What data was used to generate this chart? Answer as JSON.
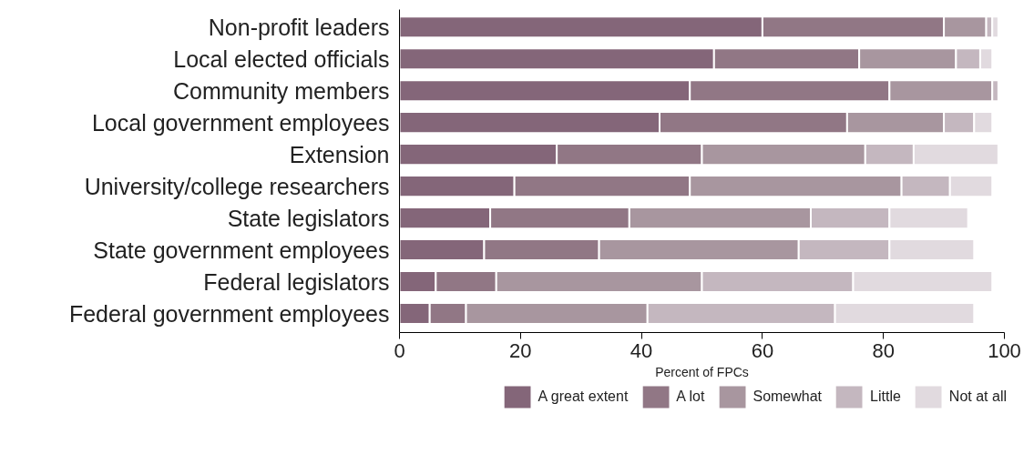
{
  "chart_data": {
    "type": "bar",
    "orientation": "horizontal",
    "stacked": true,
    "categories": [
      "Non-profit leaders",
      "Local elected officials",
      "Community members",
      "Local government employees",
      "Extension",
      "University/college researchers",
      "State legislators",
      "State government employees",
      "Federal legislators",
      "Federal government employees"
    ],
    "series": [
      {
        "name": "A great extent",
        "color": "#846679",
        "values": [
          60,
          52,
          48,
          43,
          26,
          19,
          15,
          14,
          6,
          5
        ]
      },
      {
        "name": "A lot",
        "color": "#917785",
        "values": [
          30,
          24,
          33,
          31,
          24,
          29,
          23,
          19,
          10,
          6
        ]
      },
      {
        "name": "Somewhat",
        "color": "#a8969f",
        "values": [
          7,
          16,
          17,
          16,
          27,
          35,
          30,
          33,
          34,
          30
        ]
      },
      {
        "name": "Little",
        "color": "#c4b7bf",
        "values": [
          1,
          4,
          1,
          5,
          8,
          8,
          13,
          15,
          25,
          31
        ]
      },
      {
        "name": "Not at all",
        "color": "#e1dadf",
        "values": [
          1,
          2,
          0,
          3,
          14,
          7,
          13,
          14,
          23,
          23
        ]
      }
    ],
    "xlabel": "Percent of FPCs",
    "xlim": [
      0,
      100
    ],
    "xticks": [
      0,
      20,
      40,
      60,
      80,
      100
    ],
    "grid": false,
    "legend": "bottom"
  }
}
